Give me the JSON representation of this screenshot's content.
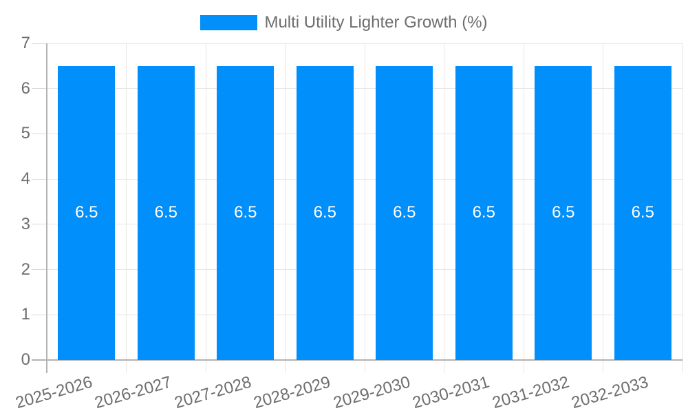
{
  "chart_data": {
    "type": "bar",
    "title": "",
    "legend_position": "top-center",
    "categories": [
      "2025-2026",
      "2026-2027",
      "2027-2028",
      "2028-2029",
      "2029-2030",
      "2030-2031",
      "2031-2032",
      "2032-2033"
    ],
    "series": [
      {
        "name": "Multi Utility Lighter Growth (%)",
        "values": [
          6.5,
          6.5,
          6.5,
          6.5,
          6.5,
          6.5,
          6.5,
          6.5
        ]
      }
    ],
    "data_labels": {
      "show": true,
      "values": [
        "6.5",
        "6.5",
        "6.5",
        "6.5",
        "6.5",
        "6.5",
        "6.5",
        "6.5"
      ]
    },
    "xlabel": "",
    "ylabel": "",
    "ylim": [
      0,
      7
    ],
    "yticks": [
      0,
      1,
      2,
      3,
      4,
      5,
      6,
      7
    ],
    "grid": {
      "horizontal": true,
      "vertical": true
    },
    "x_label_rotation_deg": -16,
    "colors": {
      "series": "#008FFB",
      "grid": "#e6e6e6",
      "axis_line": "#b3b3b3",
      "tick": "#d9d9d9",
      "axis_label": "#6e6e6e",
      "legend_label": "#6e6e6e",
      "bar_label": "#ffffff",
      "background": "#ffffff"
    }
  }
}
